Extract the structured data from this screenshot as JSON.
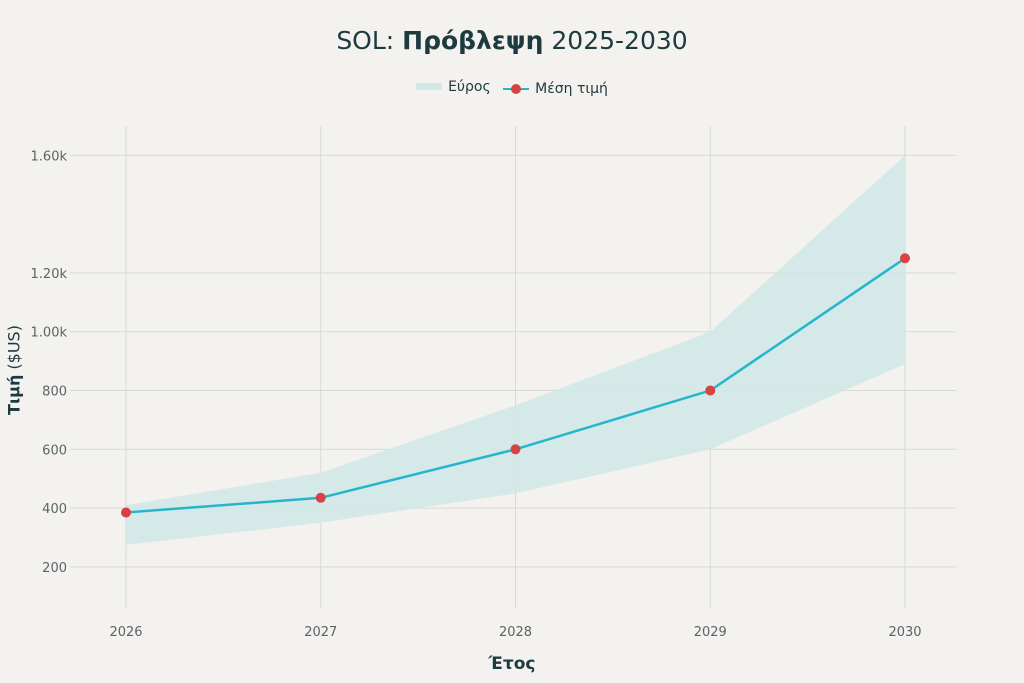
{
  "title": {
    "prefix": "SOL: ",
    "bold": "Πρόβλεψη",
    "suffix": " 2025-2030"
  },
  "legend": {
    "band_label": "Εύρος",
    "line_label": "Μέση τιμή"
  },
  "axes": {
    "ylabel_bold": "Τιμή",
    "ylabel_rest": " ($US)",
    "xlabel": "Έτος"
  },
  "colors": {
    "background": "#f3f2ee",
    "band": "#cfe9e6",
    "line": "#27b5ce",
    "marker": "#d84244",
    "grid": "#d9d9d4",
    "text": "#1c3a40",
    "tick": "#5a6468"
  },
  "chart_data": {
    "type": "line",
    "title": "SOL: Πρόβλεψη 2025-2030",
    "xlabel": "Έτος",
    "ylabel": "Τιμή ($US)",
    "x": [
      2026,
      2027,
      2028,
      2029,
      2030
    ],
    "x_tick_labels": [
      "2026",
      "2027",
      "2028",
      "2029",
      "2030"
    ],
    "series": [
      {
        "name": "Μέση τιμή",
        "values": [
          385,
          435,
          600,
          800,
          1250
        ]
      }
    ],
    "band": {
      "name": "Εύρος",
      "lower": [
        275,
        350,
        450,
        600,
        890
      ],
      "upper": [
        410,
        520,
        750,
        1000,
        1600
      ]
    },
    "y_ticks": [
      200,
      400,
      600,
      800,
      1000,
      1200,
      1600
    ],
    "y_tick_labels": [
      "200",
      "400",
      "600",
      "800",
      "1.00k",
      "1.20k",
      "1.60k"
    ],
    "ylim": [
      60,
      1700
    ],
    "grid": true,
    "legend_position": "top-center"
  }
}
